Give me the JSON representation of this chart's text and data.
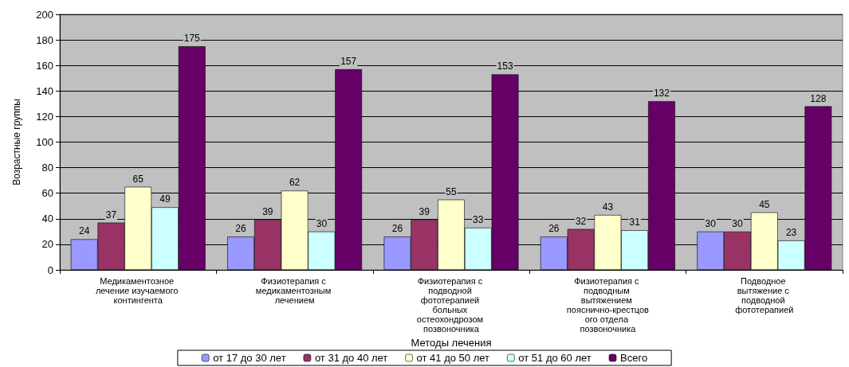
{
  "chart_data": {
    "type": "bar",
    "xlabel": "Методы лечения",
    "ylabel": "Возрастные группы",
    "categories": [
      "Медикаментозное лечение изучаемого контингента",
      "Физиотерапия с медикаментозным лечением",
      "Физиотерапия с подводной фототерапией больных остеохондрозом позвоночника",
      "Физиотерапия с подводным вытяжением пояснично-крестцового отдела позвоночника",
      "Подводное вытяжение с подводной фототерапией"
    ],
    "series": [
      {
        "name": "от 17 до 30 лет",
        "color": "#9999ff",
        "values": [
          24,
          26,
          26,
          26,
          30
        ]
      },
      {
        "name": "от 31 до 40 лет",
        "color": "#993366",
        "values": [
          37,
          39,
          39,
          32,
          30
        ]
      },
      {
        "name": "от 41 до 50 лет",
        "color": "#ffffcc",
        "values": [
          65,
          62,
          55,
          43,
          45
        ]
      },
      {
        "name": "от 51 до 60 лет",
        "color": "#ccffff",
        "values": [
          49,
          30,
          33,
          31,
          23
        ]
      },
      {
        "name": "Всего",
        "color": "#660066",
        "values": [
          175,
          157,
          153,
          132,
          128
        ]
      }
    ],
    "ylim": [
      0,
      200
    ],
    "yticks": [
      0,
      20,
      40,
      60,
      80,
      100,
      120,
      140,
      160,
      180,
      200
    ],
    "grid": "y",
    "legend": "bottom",
    "data_labels": true
  }
}
